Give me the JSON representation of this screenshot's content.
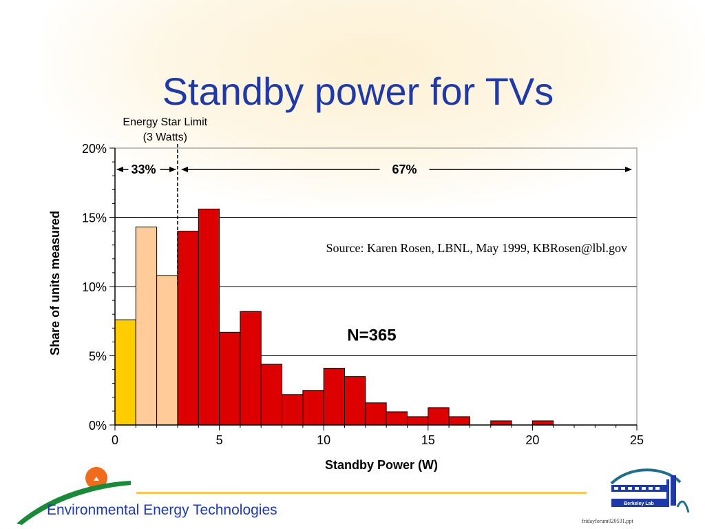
{
  "slide": {
    "title": "Standby power for TVs",
    "footer": "Environmental Energy Technologies",
    "filename": "fridayforum020531.ppt",
    "lab_logo_text": "Berkeley Lab"
  },
  "chart_data": {
    "type": "bar",
    "xlabel": "Standby Power (W)",
    "ylabel": "Share of units measured",
    "xlim": [
      0,
      25
    ],
    "ylim": [
      0,
      20
    ],
    "x_ticks": [
      "0",
      "5",
      "10",
      "15",
      "20",
      "25"
    ],
    "y_ticks": [
      "0%",
      "5%",
      "10%",
      "15%",
      "20%"
    ],
    "grid": "horizontal",
    "bin_width": 1,
    "bins": [
      {
        "x": 0,
        "value": 7.6,
        "color": "#ffcc00"
      },
      {
        "x": 1,
        "value": 14.3,
        "color": "#ffcc99"
      },
      {
        "x": 2,
        "value": 10.8,
        "color": "#ffcc99"
      },
      {
        "x": 3,
        "value": 14.0,
        "color": "#dd0000"
      },
      {
        "x": 4,
        "value": 15.6,
        "color": "#dd0000"
      },
      {
        "x": 5,
        "value": 6.7,
        "color": "#dd0000"
      },
      {
        "x": 6,
        "value": 8.2,
        "color": "#dd0000"
      },
      {
        "x": 7,
        "value": 4.4,
        "color": "#dd0000"
      },
      {
        "x": 8,
        "value": 2.2,
        "color": "#dd0000"
      },
      {
        "x": 9,
        "value": 2.5,
        "color": "#dd0000"
      },
      {
        "x": 10,
        "value": 4.1,
        "color": "#dd0000"
      },
      {
        "x": 11,
        "value": 3.5,
        "color": "#dd0000"
      },
      {
        "x": 12,
        "value": 1.6,
        "color": "#dd0000"
      },
      {
        "x": 13,
        "value": 0.95,
        "color": "#dd0000"
      },
      {
        "x": 14,
        "value": 0.6,
        "color": "#dd0000"
      },
      {
        "x": 15,
        "value": 1.25,
        "color": "#dd0000"
      },
      {
        "x": 16,
        "value": 0.6,
        "color": "#dd0000"
      },
      {
        "x": 18,
        "value": 0.3,
        "color": "#dd0000"
      },
      {
        "x": 20,
        "value": 0.3,
        "color": "#dd0000"
      }
    ],
    "energy_star_limit": {
      "x": 3,
      "label_line1": "Energy Star Limit",
      "label_line2": "(3 Watts)"
    },
    "share_below_limit": "33%",
    "share_above_limit": "67%",
    "sample_size": "N=365",
    "source": "Source:  Karen Rosen, LBNL, May 1999, KBRosen@lbl.gov"
  }
}
